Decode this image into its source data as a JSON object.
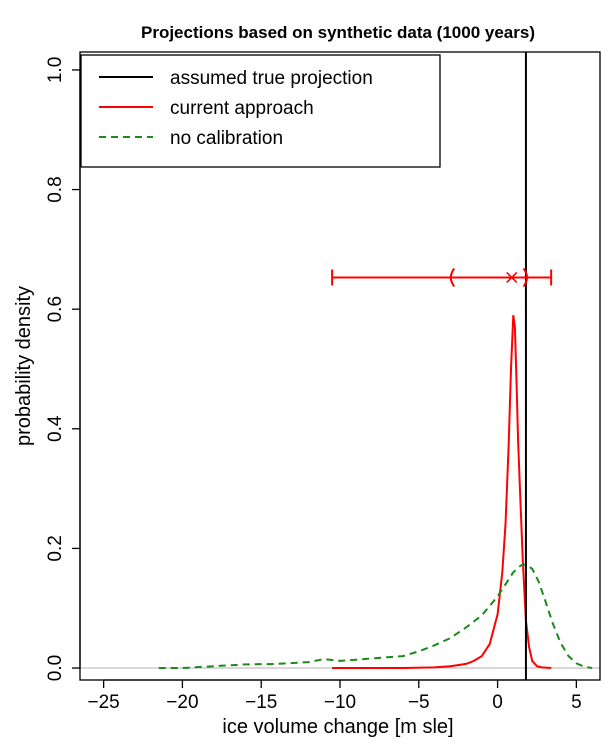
{
  "chart_data": {
    "type": "line",
    "title": "Projections based on synthetic data (1000 years)",
    "xlabel": "ice volume change [m sle]",
    "ylabel": "probability density",
    "xlim": [
      -26.5,
      6.5
    ],
    "ylim": [
      -0.02,
      1.03
    ],
    "x_ticks": [
      -25,
      -20,
      -15,
      -10,
      -5,
      0,
      5
    ],
    "x_tick_labels": [
      "−25",
      "−20",
      "−15",
      "−10",
      "−5",
      "0",
      "5"
    ],
    "y_ticks": [
      0,
      0.2,
      0.4,
      0.6,
      0.8,
      1
    ],
    "y_tick_labels": [
      "0.0",
      "0.2",
      "0.4",
      "0.6",
      "0.8",
      "1.0"
    ],
    "grid": false,
    "legend_position": "top-left",
    "colors": {
      "truth": "#000000",
      "current": "#ff0000",
      "nocal": "#1a8a1a",
      "baseline": "#b0b0b0"
    },
    "legend": [
      {
        "label": "assumed true projection",
        "color": "#000000",
        "dash": "solid"
      },
      {
        "label": "current approach",
        "color": "#ff0000",
        "dash": "solid"
      },
      {
        "label": "no calibration",
        "color": "#1a8a1a",
        "dash": "dashed"
      }
    ],
    "assumed_true_projection": 1.8,
    "interval": {
      "y": 0.653,
      "outer_min": -10.5,
      "outer_max": 3.4,
      "inner_min": -3.0,
      "inner_max": 1.9,
      "center": 0.9
    },
    "series": [
      {
        "name": "current approach",
        "x": [
          -10.5,
          -8,
          -6,
          -4,
          -3,
          -2,
          -1.5,
          -1,
          -0.5,
          0,
          0.3,
          0.5,
          0.7,
          0.85,
          1.0,
          1.1,
          1.2,
          1.3,
          1.45,
          1.6,
          1.8,
          2.0,
          2.2,
          2.5,
          2.8,
          3.4
        ],
        "y": [
          0,
          0,
          0,
          0.001,
          0.003,
          0.007,
          0.012,
          0.02,
          0.04,
          0.09,
          0.16,
          0.24,
          0.37,
          0.5,
          0.59,
          0.57,
          0.48,
          0.38,
          0.28,
          0.18,
          0.08,
          0.035,
          0.012,
          0.003,
          0.001,
          0
        ]
      },
      {
        "name": "no calibration",
        "x": [
          -21.5,
          -20,
          -18,
          -16,
          -14,
          -12,
          -11,
          -10,
          -9,
          -8,
          -7,
          -6,
          -5,
          -4,
          -3,
          -2,
          -1,
          0,
          0.5,
          1,
          1.5,
          1.8,
          2.2,
          2.6,
          3,
          3.5,
          4,
          4.5,
          5,
          5.5,
          6
        ],
        "y": [
          0,
          0,
          0.003,
          0.006,
          0.007,
          0.01,
          0.015,
          0.012,
          0.014,
          0.016,
          0.018,
          0.02,
          0.028,
          0.038,
          0.05,
          0.068,
          0.088,
          0.12,
          0.14,
          0.16,
          0.172,
          0.173,
          0.166,
          0.145,
          0.115,
          0.075,
          0.042,
          0.02,
          0.008,
          0.002,
          0
        ]
      }
    ]
  }
}
